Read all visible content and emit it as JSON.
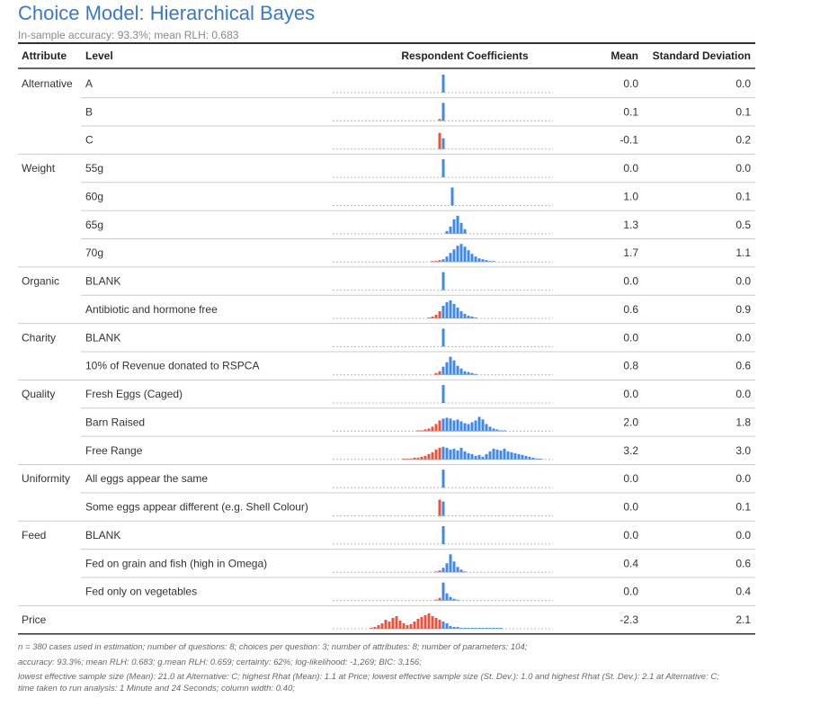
{
  "title": "Choice Model: Hierarchical Bayes",
  "subtitle": "In-sample accuracy: 93.3%; mean RLH: 0.683",
  "header": {
    "attribute": "Attribute",
    "level": "Level",
    "coefficients": "Respondent Coefficients",
    "mean": "Mean",
    "sd": "Standard Deviation"
  },
  "colors": {
    "negative": "#e8533f",
    "positive": "#3f8ae8"
  },
  "groups": [
    {
      "attribute": "Alternative",
      "levels": [
        {
          "level": "A",
          "mean": "0.0",
          "sd": "0.0",
          "bins": [
            -0.2,
            0.2
          ],
          "counts": [
            20
          ]
        },
        {
          "level": "B",
          "mean": "0.1",
          "sd": "0.1",
          "bins": [
            -0.6,
            -0.2,
            0.2
          ],
          "counts": [
            2,
            20
          ]
        },
        {
          "level": "C",
          "mean": "-0.1",
          "sd": "0.2",
          "bins": [
            -0.6,
            -0.2,
            0.2
          ],
          "counts": [
            18,
            12
          ]
        }
      ]
    },
    {
      "attribute": "Weight",
      "levels": [
        {
          "level": "55g",
          "mean": "0.0",
          "sd": "0.0",
          "bins": [
            -0.2,
            0.2
          ],
          "counts": [
            20
          ]
        },
        {
          "level": "60g",
          "mean": "1.0",
          "sd": "0.1",
          "bins": [
            0.8,
            1.2
          ],
          "counts": [
            20
          ]
        },
        {
          "level": "65g",
          "mean": "1.3",
          "sd": "0.5",
          "bins": [
            0.2,
            0.6,
            1.0,
            1.4,
            1.8,
            2.2,
            2.6
          ],
          "counts": [
            3,
            8,
            16,
            20,
            12,
            5
          ]
        },
        {
          "level": "70g",
          "mean": "1.7",
          "sd": "1.1",
          "bins": [
            -1.4,
            -1.0,
            -0.6,
            -0.2,
            0.2,
            0.6,
            1.0,
            1.4,
            1.8,
            2.2,
            2.6,
            3.0,
            3.4,
            3.8,
            4.2,
            4.6,
            5.0,
            5.4,
            5.8
          ],
          "counts": [
            1,
            1,
            2,
            3,
            6,
            10,
            14,
            18,
            20,
            17,
            13,
            9,
            6,
            4,
            3,
            2,
            1,
            1
          ]
        }
      ]
    },
    {
      "attribute": "Organic",
      "levels": [
        {
          "level": "BLANK",
          "mean": "0.0",
          "sd": "0.0",
          "bins": [
            -0.2,
            0.2
          ],
          "counts": [
            20
          ]
        },
        {
          "level": "Antibiotic and hormone free",
          "mean": "0.6",
          "sd": "0.9",
          "bins": [
            -1.8,
            -1.4,
            -1.0,
            -0.6,
            -0.2,
            0.2,
            0.6,
            1.0,
            1.4,
            1.8,
            2.2,
            2.6,
            3.0,
            3.4,
            3.8
          ],
          "counts": [
            1,
            2,
            4,
            8,
            14,
            18,
            20,
            16,
            12,
            8,
            5,
            3,
            2,
            1
          ]
        }
      ]
    },
    {
      "attribute": "Charity",
      "levels": [
        {
          "level": "BLANK",
          "mean": "0.0",
          "sd": "0.0",
          "bins": [
            -0.2,
            0.2
          ],
          "counts": [
            20
          ]
        },
        {
          "level": "10% of Revenue donated to RSPCA",
          "mean": "0.8",
          "sd": "0.6",
          "bins": [
            -1.0,
            -0.6,
            -0.2,
            0.2,
            0.6,
            1.0,
            1.4,
            1.8,
            2.2,
            2.6,
            3.0,
            3.4,
            3.8
          ],
          "counts": [
            2,
            4,
            9,
            14,
            20,
            16,
            10,
            7,
            4,
            3,
            2,
            1
          ]
        }
      ]
    },
    {
      "attribute": "Quality",
      "levels": [
        {
          "level": "Fresh Eggs (Caged)",
          "mean": "0.0",
          "sd": "0.0",
          "bins": [
            -0.2,
            0.2
          ],
          "counts": [
            20
          ]
        },
        {
          "level": "Barn Raised",
          "mean": "2.0",
          "sd": "1.8",
          "bins": [
            -3.0,
            -2.6,
            -2.2,
            -1.8,
            -1.4,
            -1.0,
            -0.6,
            -0.2,
            0.2,
            0.6,
            1.0,
            1.4,
            1.8,
            2.2,
            2.6,
            3.0,
            3.4,
            3.8,
            4.2,
            4.6,
            5.0,
            5.4,
            5.8,
            6.2,
            6.6,
            7.0
          ],
          "counts": [
            1,
            1,
            2,
            3,
            5,
            8,
            12,
            14,
            15,
            14,
            12,
            13,
            11,
            9,
            8,
            10,
            12,
            16,
            13,
            8,
            5,
            3,
            2,
            1,
            1
          ]
        },
        {
          "level": "Free Range",
          "mean": "3.2",
          "sd": "3.0",
          "bins": [
            -4.6,
            -4.2,
            -3.8,
            -3.4,
            -3.0,
            -2.6,
            -2.2,
            -1.8,
            -1.4,
            -1.0,
            -0.6,
            -0.2,
            0.2,
            0.6,
            1.0,
            1.4,
            1.8,
            2.2,
            2.6,
            3.0,
            3.4,
            3.8,
            4.2,
            4.6,
            5.0,
            5.4,
            5.8,
            6.2,
            6.6,
            7.0,
            7.4,
            7.8,
            8.2,
            8.6,
            9.0,
            9.4,
            9.8,
            10.2,
            10.6,
            11.0
          ],
          "counts": [
            1,
            1,
            1,
            2,
            2,
            3,
            4,
            6,
            8,
            11,
            13,
            14,
            13,
            11,
            12,
            10,
            13,
            9,
            7,
            6,
            4,
            5,
            3,
            6,
            9,
            12,
            11,
            10,
            12,
            9,
            8,
            7,
            6,
            5,
            4,
            3,
            2,
            1,
            1
          ]
        }
      ]
    },
    {
      "attribute": "Uniformity",
      "levels": [
        {
          "level": "All eggs appear the same",
          "mean": "0.0",
          "sd": "0.0",
          "bins": [
            -0.2,
            0.2
          ],
          "counts": [
            20
          ]
        },
        {
          "level": "Some eggs appear different (e.g. Shell Colour)",
          "mean": "0.0",
          "sd": "0.1",
          "bins": [
            -0.6,
            -0.2,
            0.2
          ],
          "counts": [
            18,
            16
          ]
        }
      ]
    },
    {
      "attribute": "Feed",
      "levels": [
        {
          "level": "BLANK",
          "mean": "0.0",
          "sd": "0.0",
          "bins": [
            -0.2,
            0.2
          ],
          "counts": [
            20
          ]
        },
        {
          "level": "Fed on grain and fish (high in Omega)",
          "mean": "0.4",
          "sd": "0.6",
          "bins": [
            -1.0,
            -0.6,
            -0.2,
            0.2,
            0.6,
            1.0,
            1.4,
            1.8,
            2.2,
            2.6
          ],
          "counts": [
            1,
            2,
            5,
            10,
            20,
            12,
            6,
            3,
            1
          ]
        },
        {
          "level": "Fed only on vegetables",
          "mean": "0.0",
          "sd": "0.4",
          "bins": [
            -1.0,
            -0.6,
            -0.2,
            0.2,
            0.6,
            1.0,
            1.4,
            1.8
          ],
          "counts": [
            1,
            3,
            20,
            8,
            4,
            2,
            1
          ]
        }
      ]
    },
    {
      "attribute": "Price",
      "levels": [
        {
          "mean": "-2.3",
          "sd": "2.1",
          "bins": [
            -8.2,
            -7.8,
            -7.4,
            -7.0,
            -6.6,
            -6.2,
            -5.8,
            -5.4,
            -5.0,
            -4.6,
            -4.2,
            -3.8,
            -3.4,
            -3.0,
            -2.6,
            -2.2,
            -1.8,
            -1.4,
            -1.0,
            -0.6,
            -0.2,
            0.2,
            0.6,
            1.0,
            1.4,
            1.8,
            2.2,
            2.6,
            3.0,
            3.4,
            3.8,
            4.2,
            4.6,
            5.0,
            5.4,
            5.8,
            6.2,
            6.6
          ],
          "counts": [
            1,
            2,
            4,
            6,
            10,
            8,
            12,
            14,
            9,
            6,
            4,
            5,
            8,
            11,
            13,
            15,
            17,
            14,
            12,
            10,
            8,
            6,
            3,
            2,
            2,
            1,
            1,
            1,
            1,
            1,
            1,
            1,
            1,
            1,
            1,
            1,
            1
          ]
        }
      ]
    }
  ],
  "footer": [
    "n = 380 cases used in estimation; number of questions: 8; choices per question: 3; number of attributes: 8; number of parameters: 104;",
    "accuracy: 93.3%; mean RLH: 0.683; g.mean RLH: 0.659; certainty: 62%; log-likelihood: -1,269; BIC: 3,156;",
    "lowest effective sample size (Mean): 21.0 at Alternative: C; highest Rhat (Mean): 1.1 at Price; lowest effective sample size (St. Dev.): 1.0 and highest Rhat (St. Dev.): 2.1 at Alternative: C; time taken to run analysis: 1 Minute and 24 Seconds; column width: 0.40;"
  ]
}
